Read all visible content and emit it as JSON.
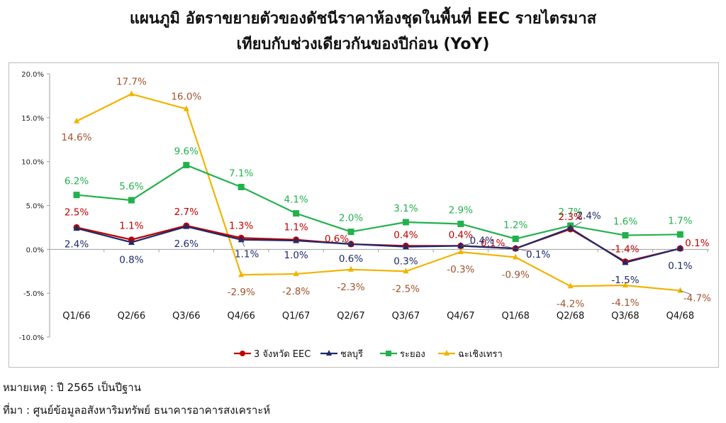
{
  "title_line1": "แผนภูมิ อัตราขยายตัวของดัชนีราคาห้องชุดในพื้นที่ EEC รายไตรมาส",
  "title_line2": "เทียบกับช่วงเดียวกันของปีก่อน (YoY)",
  "note": "หมายเหตุ : ปี 2565 เป็นปีฐาน",
  "source": "ที่มา : ศูนย์ข้อมูลอสังหาริมทรัพย์ ธนาคารอาคารสงเคราะห์",
  "chart_data": {
    "type": "line",
    "title": "แผนภูมิ อัตราขยายตัวของดัชนีราคาห้องชุดในพื้นที่ EEC รายไตรมาส เทียบกับช่วงเดียวกันของปีก่อน (YoY)",
    "categories": [
      "Q1/66",
      "Q2/66",
      "Q3/66",
      "Q4/66",
      "Q1/67",
      "Q2/67",
      "Q3/67",
      "Q4/67",
      "Q1/68",
      "Q2/68",
      "Q3/68",
      "Q4/68"
    ],
    "y_ticks": [
      "20.0%",
      "15.0%",
      "10.0%",
      "5.0%",
      "0.0%",
      "-5.0%",
      "-10.0%"
    ],
    "ylim": [
      -10,
      20
    ],
    "grid": false,
    "legend_position": "bottom",
    "series": [
      {
        "name": "3 จังหวัด EEC",
        "color": "#c00000",
        "label_color": "#c00000",
        "marker": "circle",
        "values": [
          2.5,
          1.1,
          2.7,
          1.3,
          1.1,
          0.6,
          0.4,
          0.4,
          0.1,
          2.3,
          -1.4,
          0.1
        ],
        "labels": [
          "2.5%",
          "1.1%",
          "2.7%",
          "1.3%",
          "1.1%",
          "0.6%",
          "0.4%",
          "0.4%",
          "0.1%",
          "2.3%",
          "-1.4%",
          "0.1%"
        ]
      },
      {
        "name": "ชลบุรี",
        "color": "#1f2a6b",
        "label_color": "#1f2a6b",
        "marker": "triangle",
        "values": [
          2.4,
          0.8,
          2.6,
          1.1,
          1.0,
          0.6,
          0.3,
          0.4,
          0.1,
          2.4,
          -1.5,
          0.1
        ],
        "labels": [
          "2.4%",
          "0.8%",
          "2.6%",
          "1.1%",
          "1.0%",
          "0.6%",
          "0.3%",
          "0.4%",
          "0.1%",
          "2.4%",
          "-1.5%",
          "0.1%"
        ]
      },
      {
        "name": "ระยอง",
        "color": "#22b14c",
        "label_color": "#22b14c",
        "marker": "square",
        "values": [
          6.2,
          5.6,
          9.6,
          7.1,
          4.1,
          2.0,
          3.1,
          2.9,
          1.2,
          2.7,
          1.6,
          1.7
        ],
        "labels": [
          "6.2%",
          "5.6%",
          "9.6%",
          "7.1%",
          "4.1%",
          "2.0%",
          "3.1%",
          "2.9%",
          "1.2%",
          "2.7%",
          "1.6%",
          "1.7%"
        ]
      },
      {
        "name": "ฉะเชิงเทรา",
        "color": "#f0b400",
        "label_color": "#a0522d",
        "marker": "triangle",
        "values": [
          14.6,
          17.7,
          16.0,
          -2.9,
          -2.8,
          -2.3,
          -2.5,
          -0.3,
          -0.9,
          -4.2,
          -4.1,
          -4.7
        ],
        "labels": [
          "14.6%",
          "17.7%",
          "16.0%",
          "-2.9%",
          "-2.8%",
          "-2.3%",
          "-2.5%",
          "-0.3%",
          "-0.9%",
          "-4.2%",
          "-4.1%",
          "-4.7%"
        ]
      }
    ]
  }
}
